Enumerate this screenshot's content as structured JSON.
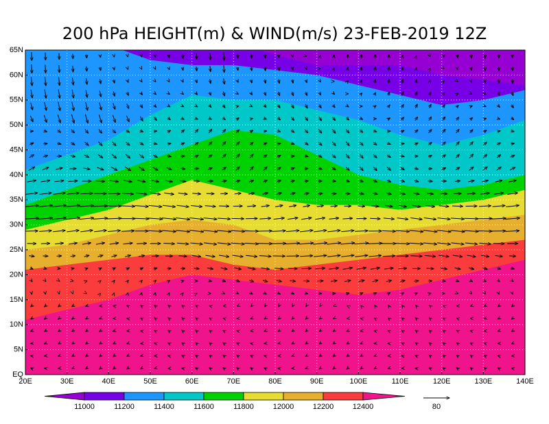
{
  "title": "200 hPa HEIGHT(m) & WIND(m/s) 23-FEB-2019 12Z",
  "map": {
    "lon_range": [
      20,
      140
    ],
    "lat_range": [
      0,
      65
    ],
    "lon_ticks": [
      {
        "value": 20,
        "label": "20E"
      },
      {
        "value": 30,
        "label": "30E"
      },
      {
        "value": 40,
        "label": "40E"
      },
      {
        "value": 50,
        "label": "50E"
      },
      {
        "value": 60,
        "label": "60E"
      },
      {
        "value": 70,
        "label": "70E"
      },
      {
        "value": 80,
        "label": "80E"
      },
      {
        "value": 90,
        "label": "90E"
      },
      {
        "value": 100,
        "label": "100E"
      },
      {
        "value": 110,
        "label": "110E"
      },
      {
        "value": 120,
        "label": "120E"
      },
      {
        "value": 130,
        "label": "130E"
      },
      {
        "value": 140,
        "label": "140E"
      }
    ],
    "lat_ticks": [
      {
        "value": 0,
        "label": "EQ"
      },
      {
        "value": 5,
        "label": "5N"
      },
      {
        "value": 10,
        "label": "10N"
      },
      {
        "value": 15,
        "label": "15N"
      },
      {
        "value": 20,
        "label": "20N"
      },
      {
        "value": 25,
        "label": "25N"
      },
      {
        "value": 30,
        "label": "30N"
      },
      {
        "value": 35,
        "label": "35N"
      },
      {
        "value": 40,
        "label": "40N"
      },
      {
        "value": 45,
        "label": "45N"
      },
      {
        "value": 50,
        "label": "50N"
      },
      {
        "value": 55,
        "label": "55N"
      },
      {
        "value": 60,
        "label": "60N"
      },
      {
        "value": 65,
        "label": "65N"
      }
    ],
    "grid": true
  },
  "colorbar": {
    "levels": [
      11000,
      11200,
      11400,
      11600,
      11800,
      12000,
      12200,
      12400
    ],
    "colors": [
      "#9600d2",
      "#7800e6",
      "#1e96ff",
      "#00c8c8",
      "#00d200",
      "#e6dc32",
      "#e6af2d",
      "#fa3c3c",
      "#f0148c"
    ]
  },
  "reference_vector": {
    "label": "80"
  }
}
